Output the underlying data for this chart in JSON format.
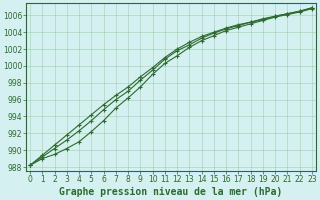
{
  "title": "Graphe pression niveau de la mer (hPa)",
  "x_ticks": [
    0,
    1,
    2,
    3,
    4,
    5,
    6,
    7,
    8,
    9,
    10,
    11,
    12,
    13,
    14,
    15,
    16,
    17,
    18,
    19,
    20,
    21,
    22,
    23
  ],
  "y_min": 988,
  "y_max": 1007,
  "y_ticks": [
    988,
    990,
    992,
    994,
    996,
    998,
    1000,
    1002,
    1004,
    1006
  ],
  "line1": [
    988.2,
    989.0,
    989.5,
    990.2,
    991.0,
    992.2,
    993.5,
    995.0,
    996.2,
    997.5,
    999.0,
    1000.3,
    1001.2,
    1002.2,
    1003.0,
    1003.6,
    1004.2,
    1004.6,
    1005.0,
    1005.4,
    1005.8,
    1006.1,
    1006.4,
    1006.8
  ],
  "line2": [
    988.2,
    989.2,
    990.2,
    991.2,
    992.3,
    993.5,
    994.8,
    996.0,
    997.0,
    998.3,
    999.5,
    1000.8,
    1001.8,
    1002.5,
    1003.3,
    1003.9,
    1004.4,
    1004.8,
    1005.2,
    1005.5,
    1005.9,
    1006.2,
    1006.5,
    1006.9
  ],
  "line3": [
    988.2,
    989.4,
    990.6,
    991.8,
    993.0,
    994.2,
    995.4,
    996.5,
    997.5,
    998.7,
    999.8,
    1001.0,
    1002.0,
    1002.8,
    1003.5,
    1004.0,
    1004.5,
    1004.9,
    1005.2,
    1005.6,
    1005.9,
    1006.2,
    1006.5,
    1006.9
  ],
  "line_color": "#2d6a2d",
  "marker_color": "#2d6a2d",
  "bg_color": "#d4f0f0",
  "grid_color": "#7aba7a",
  "title_fontsize": 7.0,
  "tick_fontsize": 5.5
}
